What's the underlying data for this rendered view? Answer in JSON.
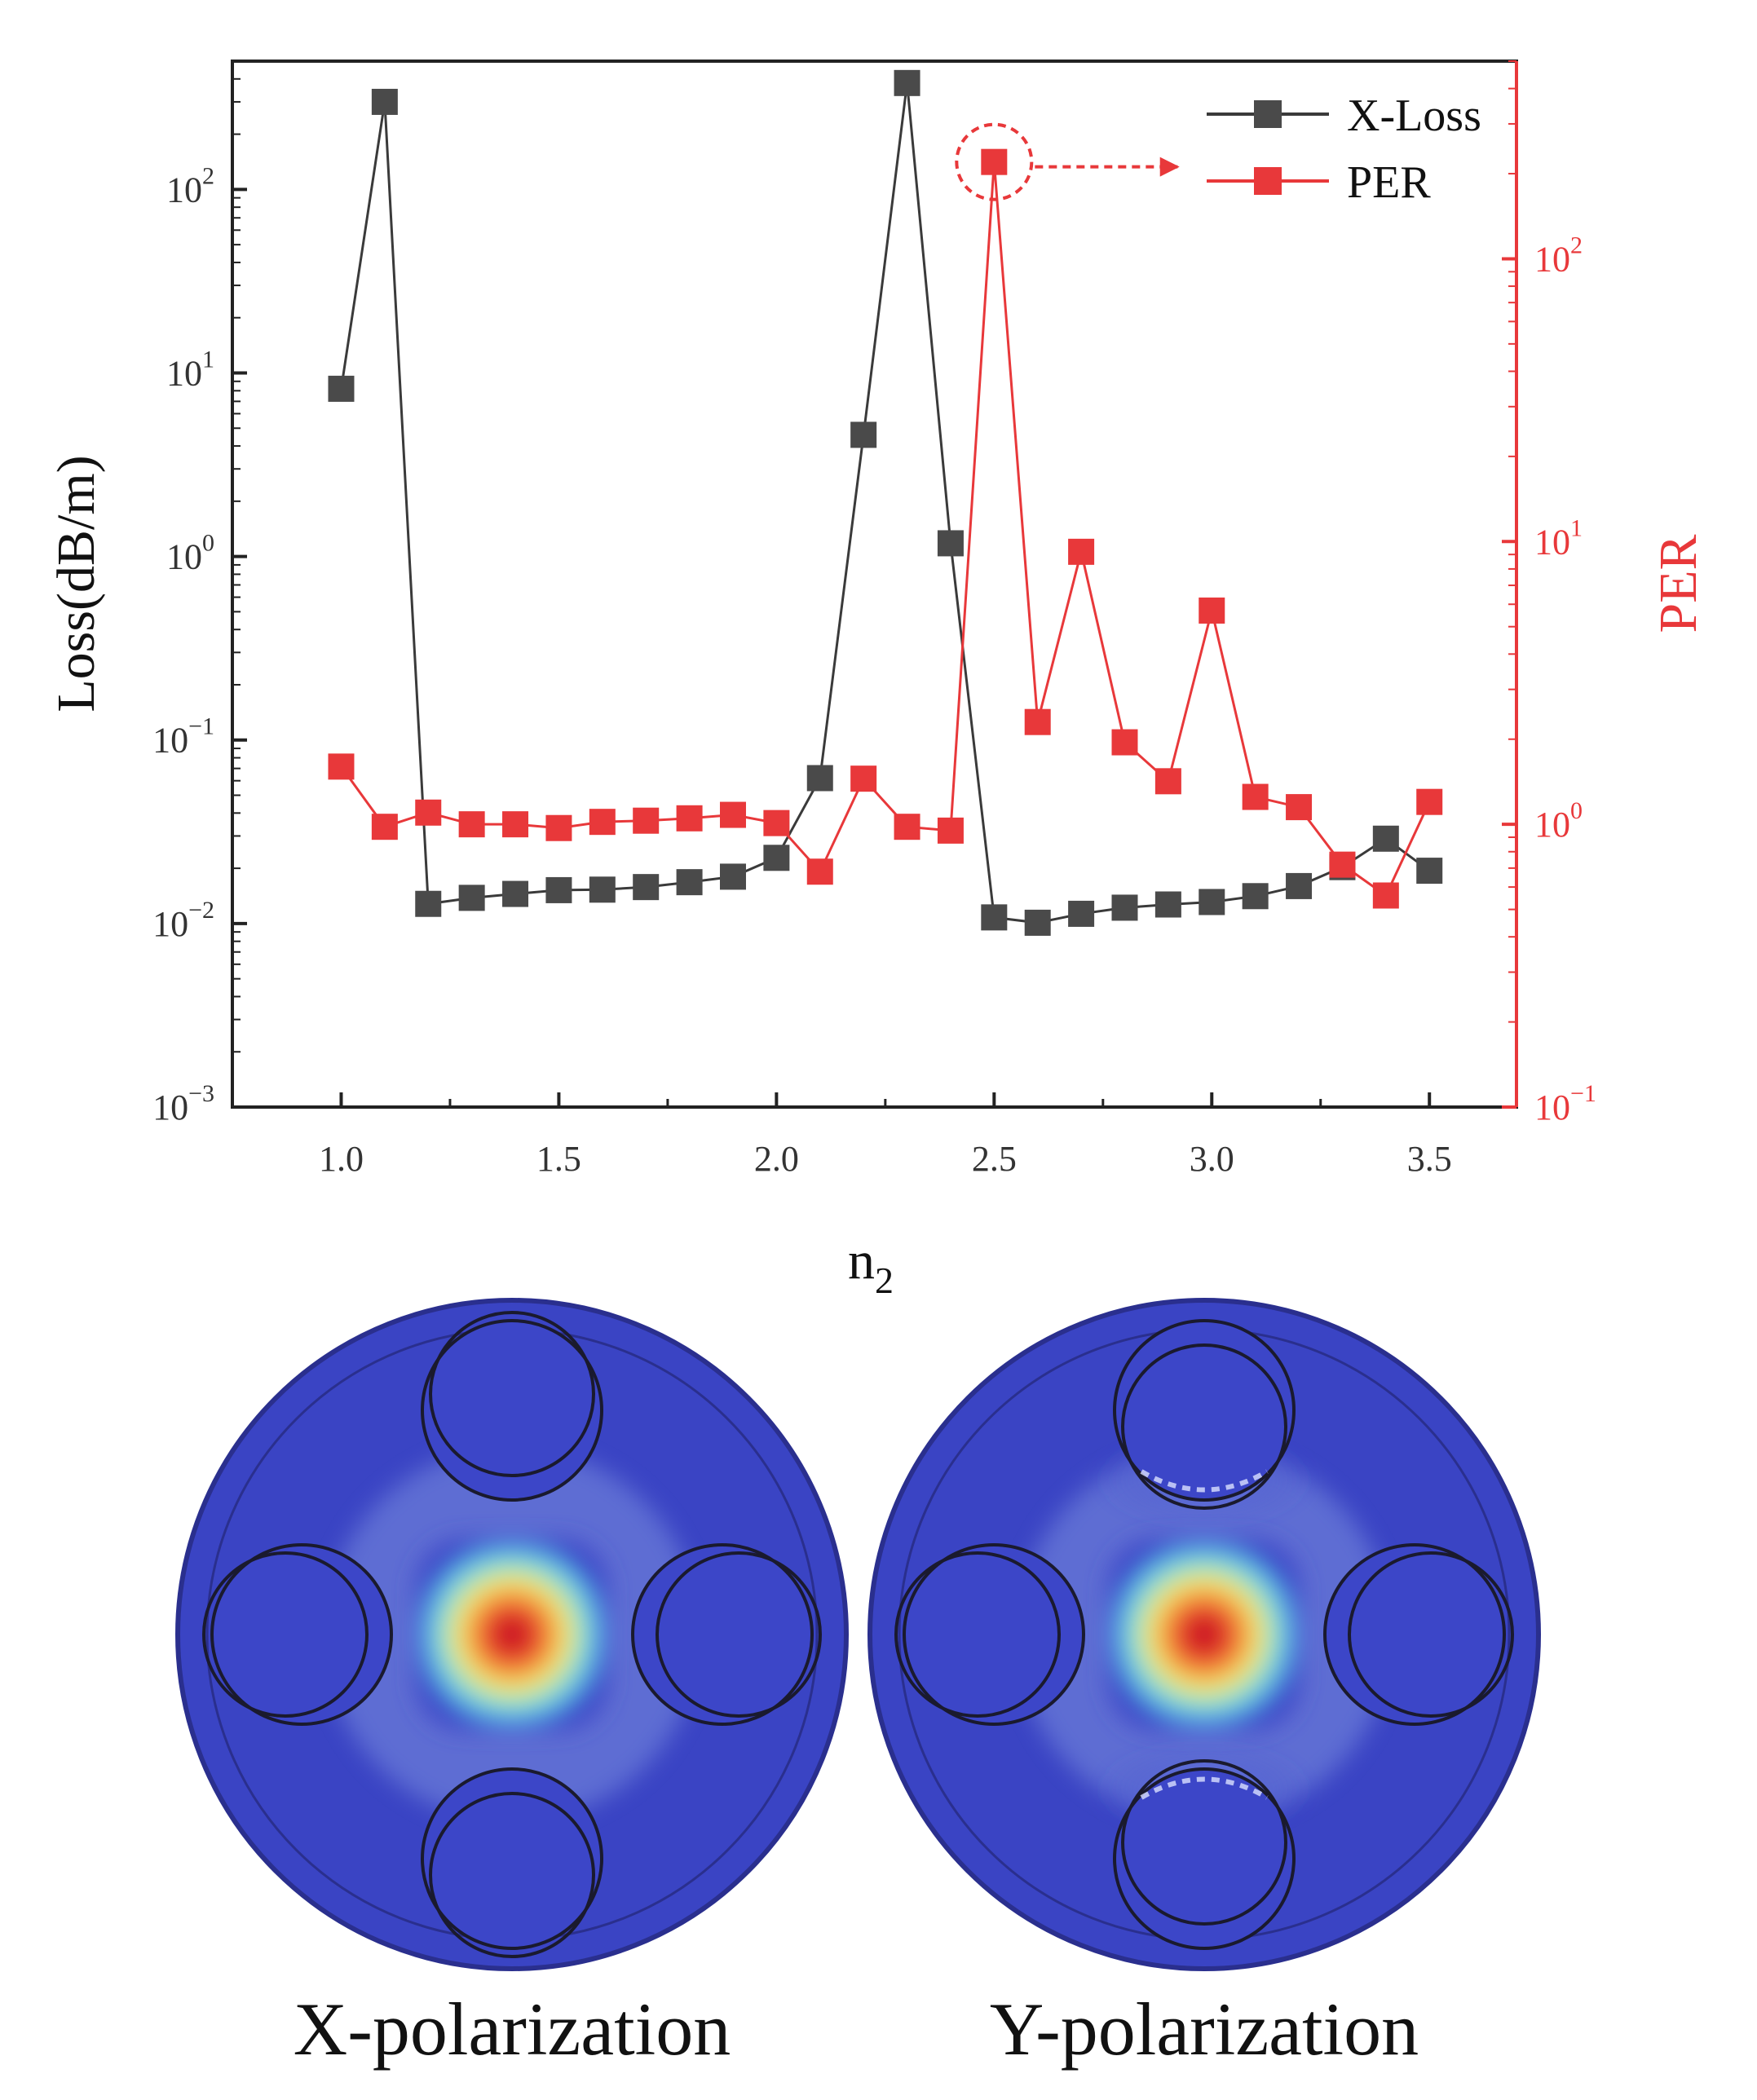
{
  "chart_data": {
    "type": "line",
    "xlabel": "n",
    "xlabel_sub": "2",
    "ylabel": "Loss(dB/m)",
    "y2label": "PER",
    "xlim": [
      0.75,
      3.7
    ],
    "ylim": [
      0.001,
      500
    ],
    "y2lim": [
      0.1,
      500
    ],
    "y_scale": "log",
    "y2_scale": "log",
    "x_ticks": [
      {
        "value": 1.0,
        "label": "1.0"
      },
      {
        "value": 1.5,
        "label": "1.5"
      },
      {
        "value": 2.0,
        "label": "2.0"
      },
      {
        "value": 2.5,
        "label": "2.5"
      },
      {
        "value": 3.0,
        "label": "3.0"
      },
      {
        "value": 3.5,
        "label": "3.5"
      }
    ],
    "y_ticks": [
      {
        "value": 0.001,
        "base": "10",
        "exp": "−3"
      },
      {
        "value": 0.01,
        "base": "10",
        "exp": "−2"
      },
      {
        "value": 0.1,
        "base": "10",
        "exp": "−1"
      },
      {
        "value": 1,
        "base": "10",
        "exp": "0"
      },
      {
        "value": 10,
        "base": "10",
        "exp": "1"
      },
      {
        "value": 100,
        "base": "10",
        "exp": "2"
      }
    ],
    "y2_ticks": [
      {
        "value": 0.1,
        "base": "10",
        "exp": "−1"
      },
      {
        "value": 1,
        "base": "10",
        "exp": "0"
      },
      {
        "value": 10,
        "base": "10",
        "exp": "1"
      },
      {
        "value": 100,
        "base": "10",
        "exp": "2"
      }
    ],
    "x": [
      1.0,
      1.1,
      1.2,
      1.3,
      1.4,
      1.5,
      1.6,
      1.7,
      1.8,
      1.9,
      2.0,
      2.1,
      2.2,
      2.3,
      2.4,
      2.5,
      2.6,
      2.7,
      2.8,
      2.9,
      3.0,
      3.1,
      3.2,
      3.3,
      3.4,
      3.5
    ],
    "series": [
      {
        "name": "X-Loss",
        "axis": "left",
        "color": "#3a3a3a",
        "marker_color": "#4a4a4a",
        "values": [
          8.2,
          300,
          0.0128,
          0.0138,
          0.0145,
          0.0152,
          0.0153,
          0.0158,
          0.0168,
          0.018,
          0.0228,
          0.062,
          4.6,
          380,
          1.18,
          0.0108,
          0.0101,
          0.0113,
          0.0122,
          0.0127,
          0.0131,
          0.0141,
          0.016,
          0.0203,
          0.029,
          0.0194
        ]
      },
      {
        "name": "PER",
        "axis": "right",
        "color": "#e8383a",
        "marker_color": "#e8383a",
        "values": [
          1.6,
          0.98,
          1.1,
          1.0,
          1.0,
          0.97,
          1.02,
          1.03,
          1.05,
          1.08,
          1.01,
          0.68,
          1.45,
          0.98,
          0.95,
          220,
          2.3,
          9.2,
          1.95,
          1.42,
          5.7,
          1.25,
          1.15,
          0.72,
          0.56,
          1.2
        ]
      }
    ],
    "annotation": {
      "target_series": "PER",
      "x": 2.5,
      "note": "dashed circle with dashed arrow pointing to legend"
    },
    "legend_position": "top-right"
  },
  "panels": {
    "left_caption": "X-polarization",
    "right_caption": "Y-polarization"
  },
  "colors": {
    "field_background": "#3c46c8",
    "field_hot": "#d21e1e",
    "outline": "#1a1a2e"
  }
}
